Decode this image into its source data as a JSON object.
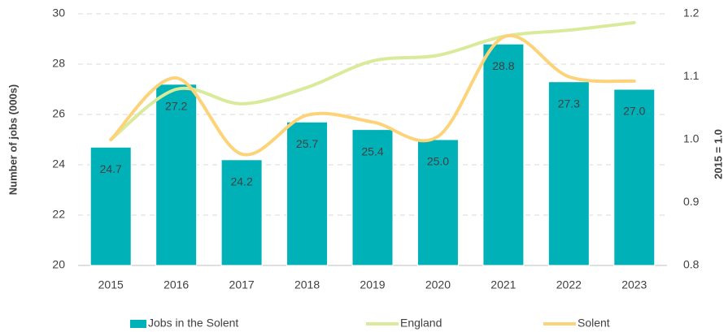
{
  "chart_data": {
    "type": "bar-line",
    "y_label": "Number of jobs (000s)",
    "y2_label": "2015 = 1.0",
    "categories": [
      "2015",
      "2016",
      "2017",
      "2018",
      "2019",
      "2020",
      "2021",
      "2022",
      "2023"
    ],
    "ylim": [
      20,
      30
    ],
    "yticks": [
      20,
      22,
      24,
      26,
      28,
      30
    ],
    "y2lim": [
      0.8,
      1.2
    ],
    "y2ticks": [
      0.8,
      0.9,
      {
        "value": 1,
        "label": "1.0"
      },
      1.1,
      1.2
    ],
    "grid": true,
    "legend": "bottom",
    "series": [
      {
        "name": "Jobs in the Solent",
        "type": "bar",
        "color": "#00b2b8",
        "values": [
          24.7,
          27.2,
          24.2,
          25.7,
          25.4,
          25.0,
          28.8,
          27.3,
          27.0
        ],
        "value_labels": [
          "24.7",
          "27.2",
          "24.2",
          "25.7",
          "25.4",
          "25.0",
          "28.8",
          "27.3",
          "27.0"
        ]
      },
      {
        "name": "England",
        "type": "line",
        "axis": "y2",
        "color": "#d9ea9a",
        "values": [
          1.0,
          1.08,
          1.057,
          1.083,
          1.125,
          1.134,
          1.164,
          1.174,
          1.186
        ]
      },
      {
        "name": "Solent",
        "type": "line",
        "axis": "y2",
        "color": "#fdd37a",
        "values": [
          1.0,
          1.098,
          0.977,
          1.039,
          1.028,
          1.005,
          1.163,
          1.1,
          1.093
        ]
      }
    ]
  }
}
